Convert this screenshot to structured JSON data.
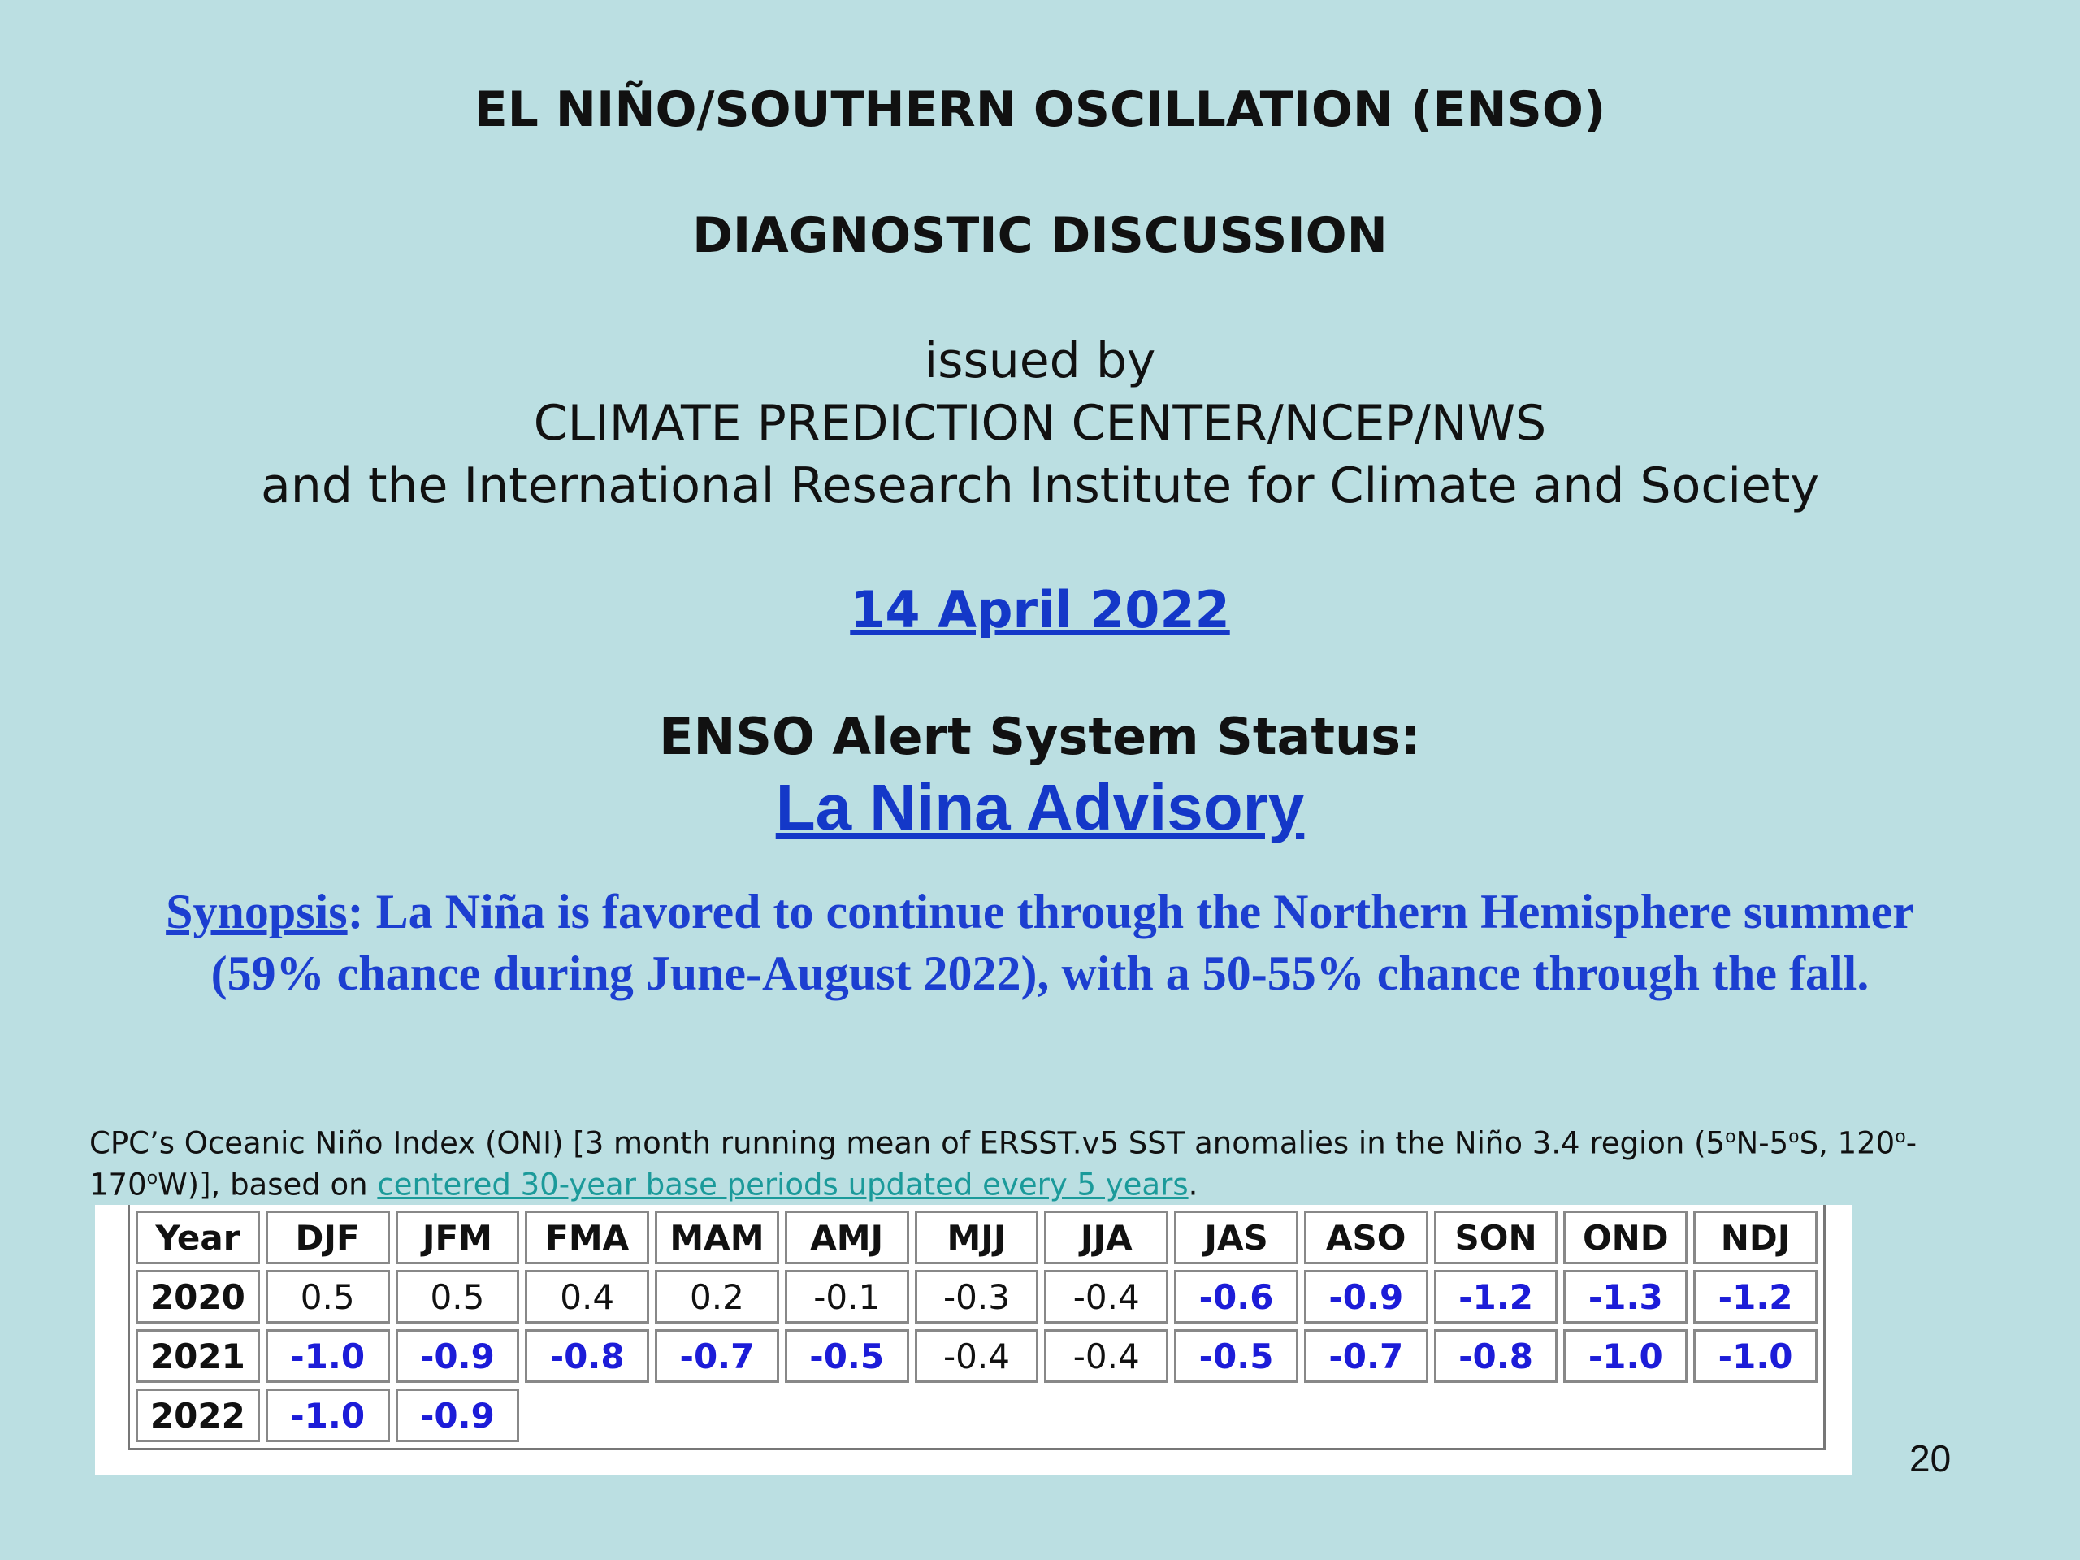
{
  "header": {
    "title": "EL NIÑO/SOUTHERN OSCILLATION (ENSO)",
    "subtitle": "DIAGNOSTIC DISCUSSION",
    "issued_lines": [
      "issued by",
      "CLIMATE PREDICTION CENTER/NCEP/NWS",
      "and the International Research Institute for Climate and Society"
    ],
    "date": "14 April 2022"
  },
  "alert": {
    "label": "ENSO Alert System Status:",
    "status": "La Nina Advisory"
  },
  "synopsis": {
    "label": "Synopsis",
    "text": ": La Niña is favored to continue through the Northern Hemisphere summer (59% chance during June-August 2022), with a 50-55% chance through the fall."
  },
  "note": [
    {
      "text": "CPC’s Oceanic Niño Index (ONI) [3 month running mean of ERSST.v5 SST anomalies in the Niño 3.4 region (5",
      "style": "plain"
    },
    {
      "text": "o",
      "style": "sup"
    },
    {
      "text": "N-5",
      "style": "plain"
    },
    {
      "text": "o",
      "style": "sup"
    },
    {
      "text": "S, 120",
      "style": "plain"
    },
    {
      "text": "o",
      "style": "sup"
    },
    {
      "text": "-170",
      "style": "plain"
    },
    {
      "text": "o",
      "style": "sup"
    },
    {
      "text": "W)], based on ",
      "style": "plain"
    },
    {
      "text": "centered 30-year base periods updated every 5 years",
      "style": "link"
    },
    {
      "text": ".",
      "style": "plain"
    }
  ],
  "table": {
    "columns": [
      "Year",
      "DJF",
      "JFM",
      "FMA",
      "MAM",
      "AMJ",
      "MJJ",
      "JJA",
      "JAS",
      "ASO",
      "SON",
      "OND",
      "NDJ"
    ],
    "rows": [
      [
        "2020",
        "0.5",
        "0.5",
        "0.4",
        "0.2",
        "-0.1",
        "-0.3",
        "-0.4",
        "-0.6",
        "-0.9",
        "-1.2",
        "-1.3",
        "-1.2"
      ],
      [
        "2021",
        "-1.0",
        "-0.9",
        "-0.8",
        "-0.7",
        "-0.5",
        "-0.4",
        "-0.4",
        "-0.5",
        "-0.7",
        "-0.8",
        "-1.0",
        "-1.0"
      ],
      [
        "2022",
        "-1.0",
        "-0.9"
      ]
    ]
  },
  "page_number": "20"
}
